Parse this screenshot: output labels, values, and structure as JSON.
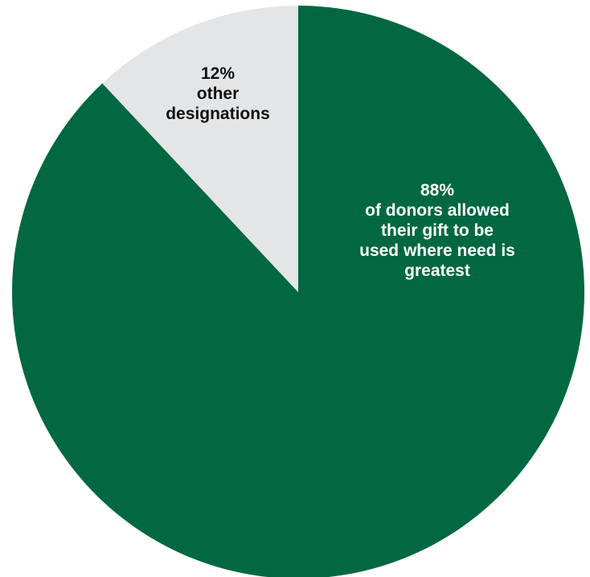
{
  "chart_data": {
    "type": "pie",
    "start_angle_deg": -90,
    "direction": "clockwise",
    "slices": [
      {
        "label": "of donors allowed their gift to be used where need is greatest",
        "value": 88,
        "value_label": "88%",
        "label_lines": [
          "of donors allowed",
          "their gift to be",
          "used where need is",
          "greatest"
        ],
        "color": "#026841",
        "text_color": "#ffffff"
      },
      {
        "label": "other designations",
        "value": 12,
        "value_label": "12%",
        "label_lines": [
          "other",
          "designations"
        ],
        "color": "#e4e5e7",
        "text_color": "#111111"
      }
    ]
  }
}
